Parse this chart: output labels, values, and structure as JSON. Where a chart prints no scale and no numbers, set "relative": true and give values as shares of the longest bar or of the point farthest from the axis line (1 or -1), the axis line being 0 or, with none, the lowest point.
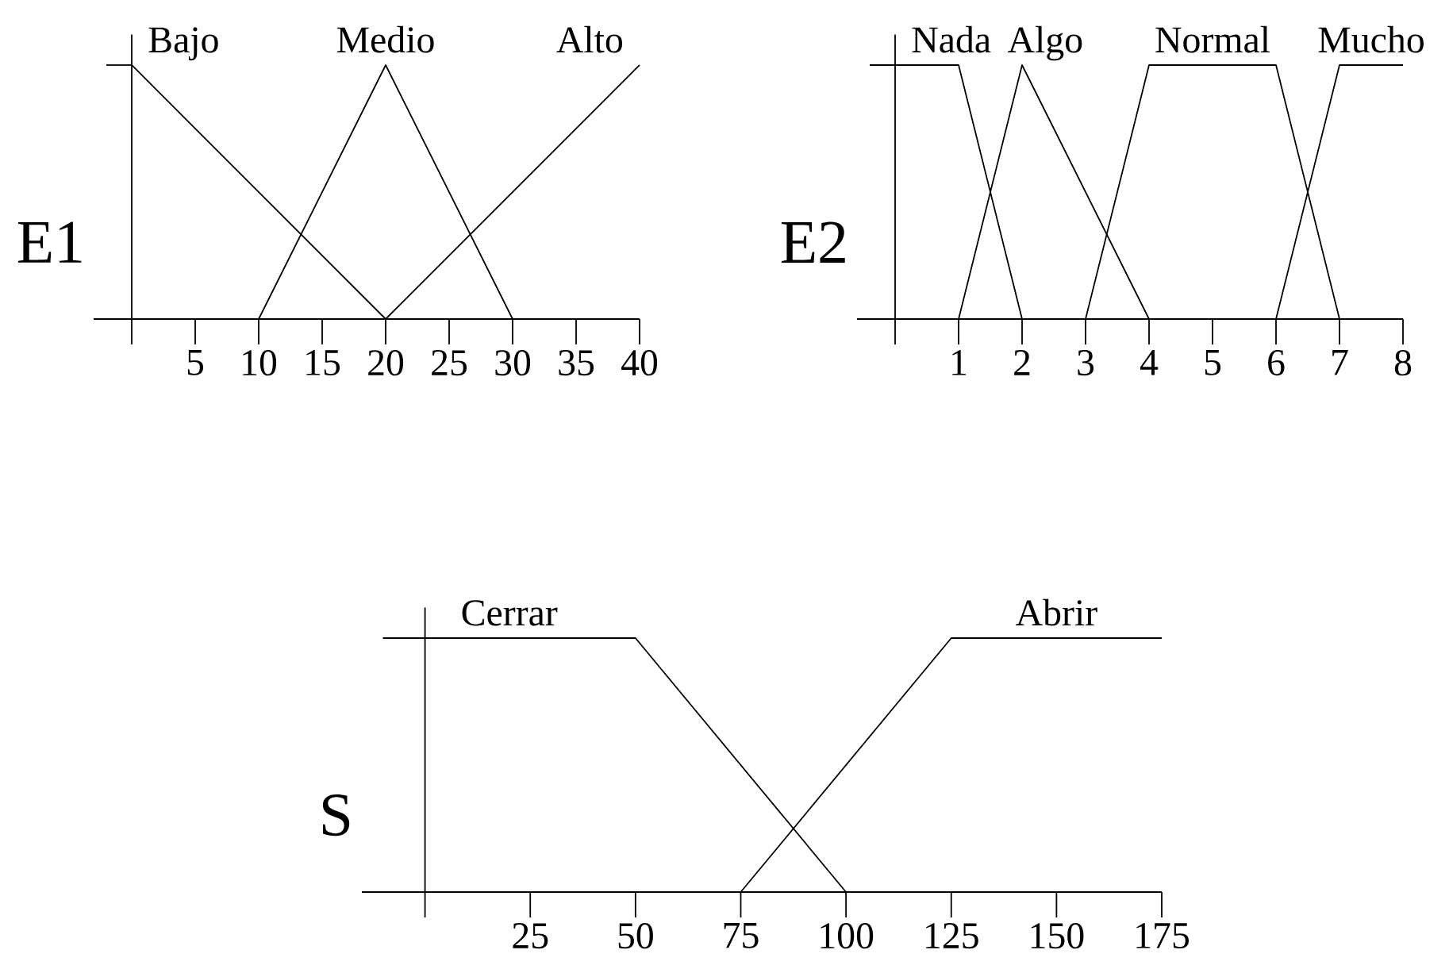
{
  "chart_data": [
    {
      "type": "line",
      "ylabel": "E1",
      "relative": true,
      "xlim": [
        -3,
        40
      ],
      "xticks": [
        5,
        10,
        15,
        20,
        25,
        30,
        35,
        40
      ],
      "series": [
        {
          "name": "Bajo",
          "color": "#000000",
          "x": [
            0,
            20
          ],
          "values": [
            1,
            0
          ]
        },
        {
          "name": "Medio",
          "color": "#000000",
          "x": [
            10,
            20,
            30
          ],
          "values": [
            0,
            1,
            0
          ]
        },
        {
          "name": "Alto",
          "color": "#000000",
          "x": [
            20,
            40
          ],
          "values": [
            0,
            1
          ]
        }
      ]
    },
    {
      "type": "line",
      "ylabel": "E2",
      "relative": true,
      "xlim": [
        -0.6,
        8
      ],
      "xticks": [
        1,
        2,
        3,
        4,
        5,
        6,
        7,
        8
      ],
      "series": [
        {
          "name": "Nada",
          "color": "#000000",
          "x": [
            0,
            1,
            2
          ],
          "values": [
            1,
            1,
            0
          ]
        },
        {
          "name": "Algo",
          "color": "#000000",
          "x": [
            1,
            2,
            4
          ],
          "values": [
            0,
            1,
            0
          ]
        },
        {
          "name": "Normal",
          "color": "#000000",
          "x": [
            3,
            4,
            6,
            7
          ],
          "values": [
            0,
            1,
            1,
            0
          ]
        },
        {
          "name": "Mucho",
          "color": "#000000",
          "x": [
            6,
            7,
            8
          ],
          "values": [
            0,
            1,
            1
          ]
        }
      ]
    },
    {
      "type": "line",
      "ylabel": "S",
      "relative": true,
      "xlim": [
        -15,
        175
      ],
      "xticks": [
        25,
        50,
        75,
        100,
        125,
        150,
        175
      ],
      "series": [
        {
          "name": "Cerrar",
          "color": "#000000",
          "x": [
            -10,
            50,
            100
          ],
          "values": [
            1,
            1,
            0
          ]
        },
        {
          "name": "Abrir",
          "color": "#000000",
          "x": [
            75,
            125,
            175
          ],
          "values": [
            0,
            1,
            1
          ]
        }
      ]
    }
  ]
}
